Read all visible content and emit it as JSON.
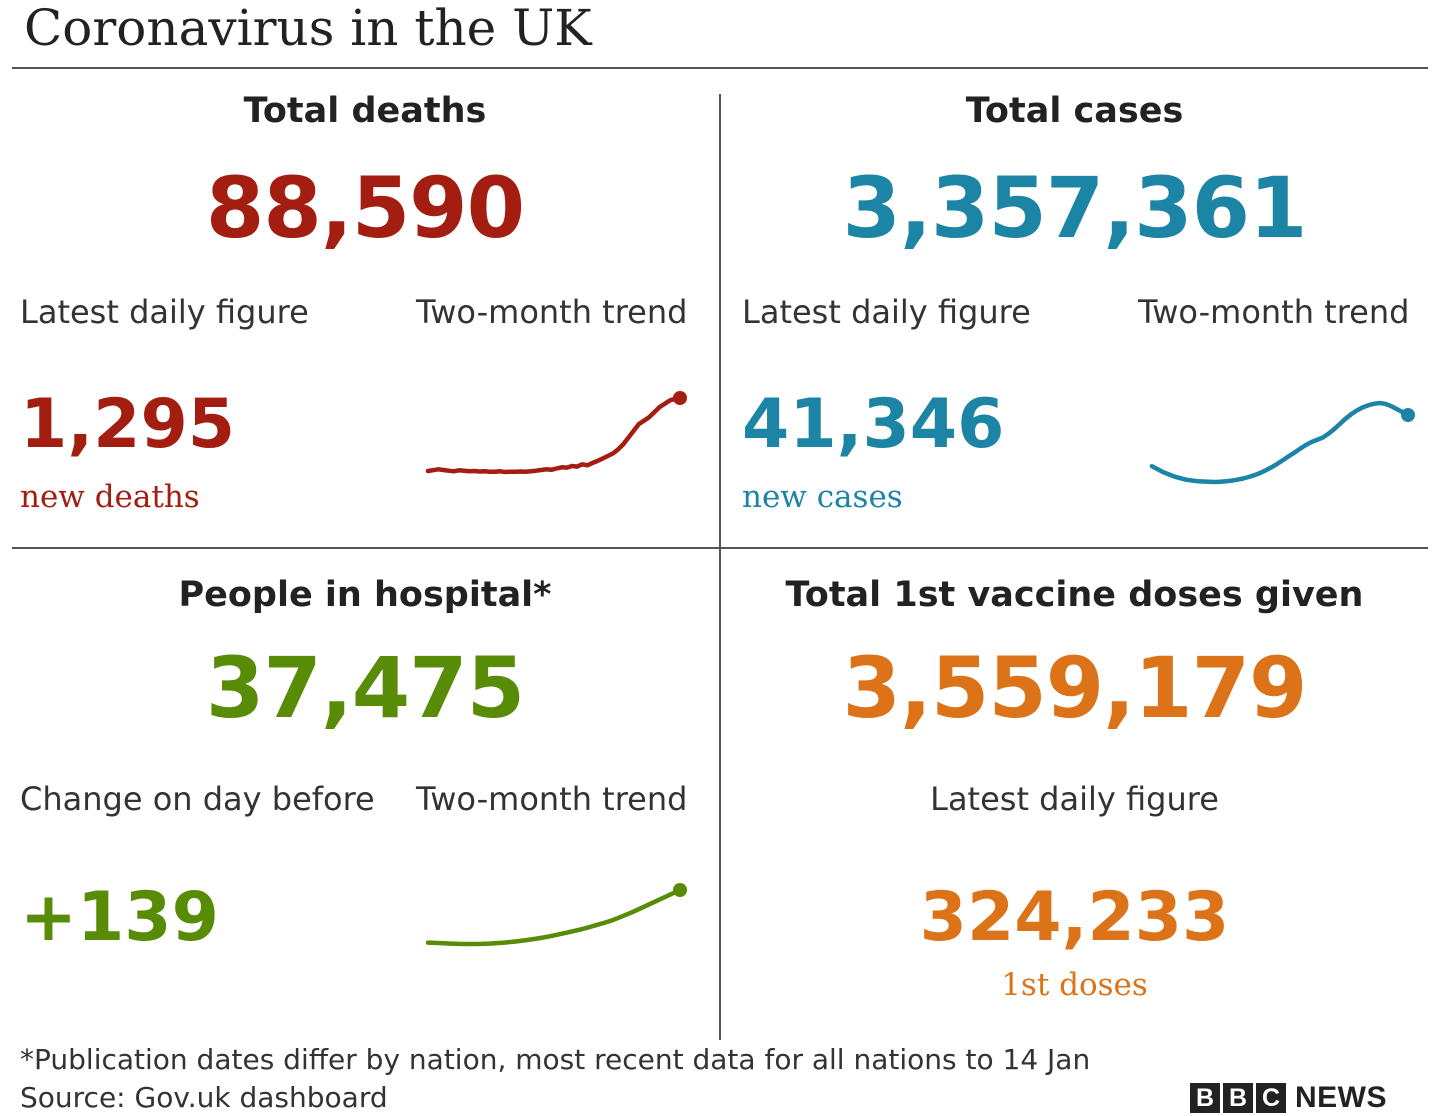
{
  "header": {
    "title": "Coronavirus in the UK"
  },
  "colors": {
    "deaths": "#a31d11",
    "cases": "#1c84a4",
    "hospital": "#588c07",
    "vaccine": "#dc7319"
  },
  "deaths": {
    "title": "Total deaths",
    "total": "88,590",
    "daily_label": "Latest daily figure",
    "trend_label": "Two-month trend",
    "daily_value": "1,295",
    "daily_unit": "new deaths"
  },
  "cases": {
    "title": "Total cases",
    "total": "3,357,361",
    "daily_label": "Latest daily figure",
    "trend_label": "Two-month trend",
    "daily_value": "41,346",
    "daily_unit": "new cases"
  },
  "hospital": {
    "title": "People in hospital*",
    "total": "37,475",
    "daily_label": "Change on day before",
    "trend_label": "Two-month trend",
    "daily_value": "+139"
  },
  "vaccine": {
    "title": "Total 1st vaccine doses given",
    "total": "3,559,179",
    "daily_label": "Latest daily figure",
    "daily_value": "324,233",
    "daily_unit": "1st doses"
  },
  "footer": {
    "note": "*Publication dates differ by nation, most recent data for all nations to 14 Jan",
    "source": "Source: Gov.uk dashboard",
    "brand_letters": [
      "B",
      "B",
      "C"
    ],
    "brand_word": "NEWS"
  },
  "chart_data": [
    {
      "type": "line",
      "series": [
        {
          "values": [
            8,
            8.5,
            9,
            8.6,
            8.2,
            7.8,
            8.4,
            8.1,
            7.9,
            8.0,
            7.7,
            7.9,
            7.6,
            7.5,
            7.8,
            7.4,
            7.6,
            7.5,
            7.7,
            7.6,
            7.9,
            8.2,
            8.6,
            9.0,
            8.7,
            9.5,
            10.2,
            10.0,
            11.0,
            10.6,
            12.0,
            11.4,
            12.8,
            14.0,
            15.5,
            17.0,
            18.5,
            21.0,
            24.0,
            28.0,
            32.0,
            36.0,
            38.0,
            40.0,
            43.0,
            46.0,
            48.0,
            50.0,
            51.0,
            51.5
          ]
        }
      ]
    },
    {
      "type": "line",
      "series": [
        {
          "values": [
            22,
            20,
            18,
            16.5,
            15,
            14,
            13,
            12.5,
            12,
            11.8,
            11.6,
            11.5,
            11.7,
            12,
            12.4,
            13,
            13.8,
            14.8,
            16,
            17.5,
            19.3,
            21.3,
            23.5,
            26,
            28.5,
            31,
            33.5,
            36,
            38,
            39.5,
            41,
            43.5,
            46.5,
            50,
            53.5,
            56.5,
            59,
            61,
            62.5,
            63.5,
            64,
            63.5,
            62,
            60,
            58,
            56
          ]
        }
      ]
    },
    {
      "type": "line",
      "series": [
        {
          "values": [
            16,
            15.8,
            15.5,
            15.3,
            15.1,
            15,
            15,
            15.1,
            15.3,
            15.6,
            16,
            16.5,
            17.1,
            17.8,
            18.6,
            19.5,
            20.5,
            21.6,
            22.8,
            24,
            25.3,
            26.7,
            28.2,
            29.8,
            31.5,
            33.5,
            35.7,
            38,
            40.5,
            43,
            45.5,
            48,
            50.5,
            53
          ]
        }
      ]
    }
  ]
}
